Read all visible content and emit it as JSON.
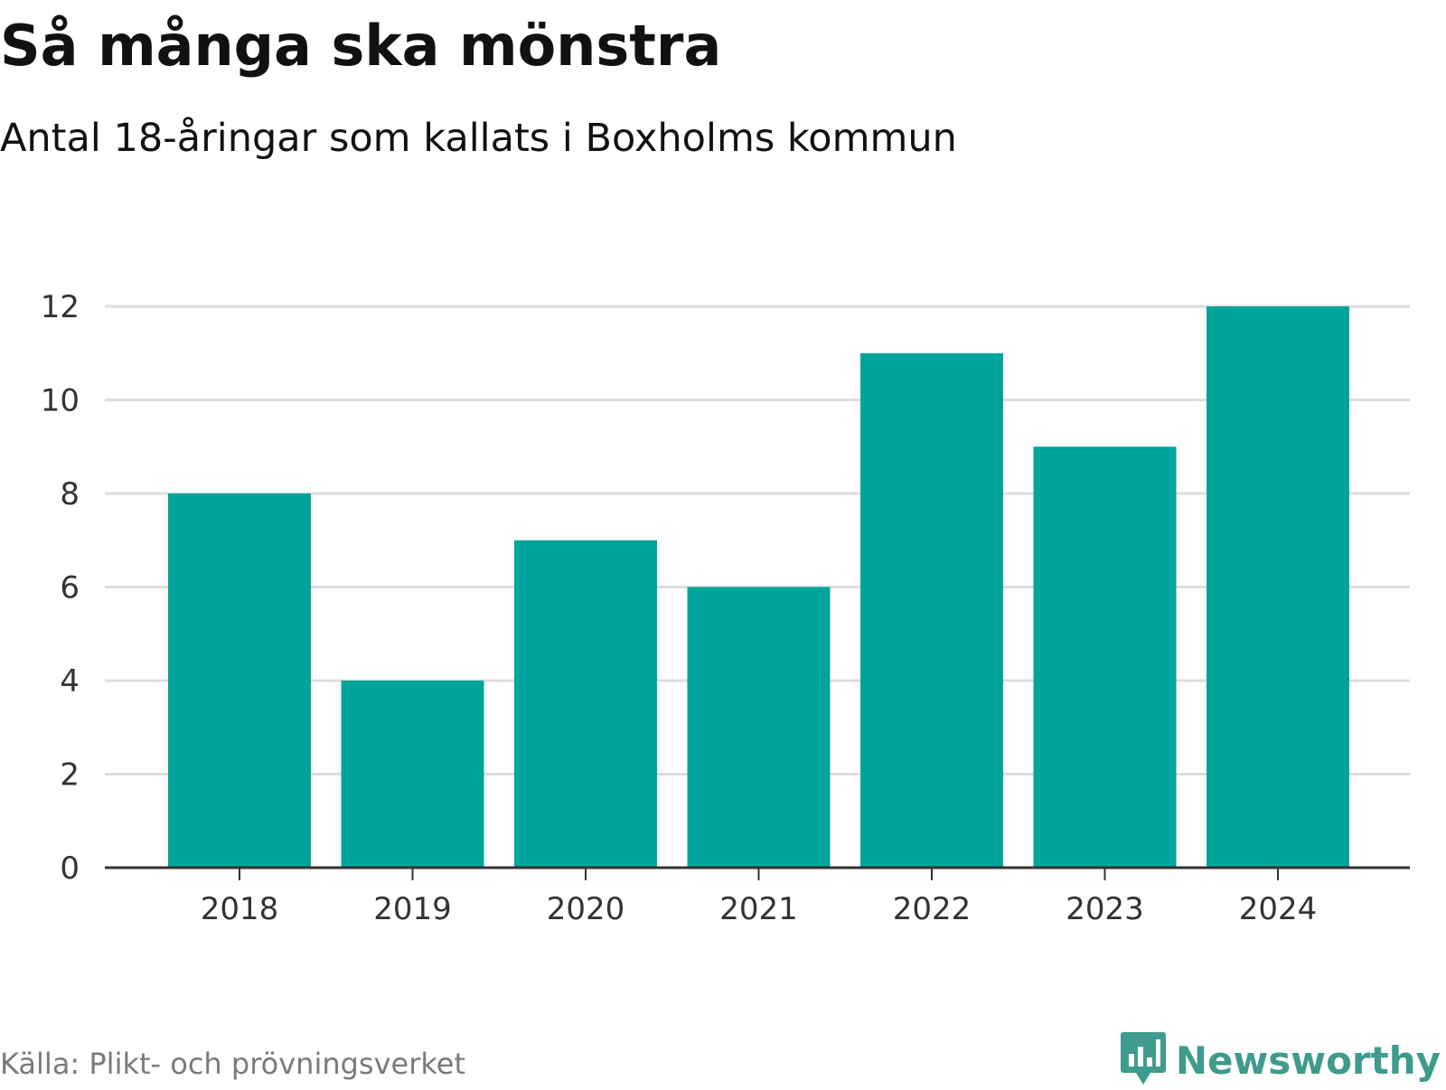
{
  "header": {
    "title": "Så många ska mönstra",
    "subtitle": "Antal 18-åringar som kallats i Boxholms kommun"
  },
  "footer": {
    "source": "Källa: Plikt- och prövningsverket",
    "brand": "Newsworthy"
  },
  "colors": {
    "bar": "#00a49a",
    "grid": "#dddddd",
    "axis": "#333333",
    "brand": "#3e9b8e"
  },
  "chart_data": {
    "type": "bar",
    "title": "Så många ska mönstra",
    "subtitle": "Antal 18-åringar som kallats i Boxholms kommun",
    "xlabel": "",
    "ylabel": "",
    "categories": [
      "2018",
      "2019",
      "2020",
      "2021",
      "2022",
      "2023",
      "2024"
    ],
    "values": [
      8,
      4,
      7,
      6,
      11,
      9,
      12
    ],
    "ylim": [
      0,
      12
    ],
    "yticks": [
      "0",
      "2",
      "4",
      "6",
      "8",
      "10",
      "12"
    ],
    "grid": true,
    "legend": "none"
  }
}
